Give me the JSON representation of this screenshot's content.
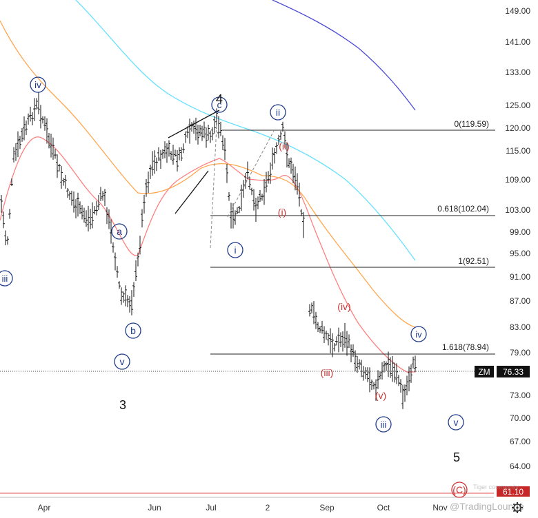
{
  "chart_data": {
    "type": "candlestick",
    "symbol": "ZM",
    "last_price": 76.33,
    "last_price_label": "76.33",
    "x_ticks": [
      "Apr",
      "Jun",
      "Jul",
      "2",
      "Sep",
      "Oct",
      "Nov"
    ],
    "y_ticks": [
      "149.00",
      "141.00",
      "133.00",
      "125.00",
      "120.00",
      "115.00",
      "109.00",
      "103.00",
      "99.00",
      "95.00",
      "91.00",
      "87.00",
      "83.00",
      "79.00",
      "73.00",
      "70.00",
      "67.00",
      "64.00"
    ],
    "fib_levels": [
      {
        "label": "0(119.59)",
        "value": 119.59
      },
      {
        "label": "0.618(102.04)",
        "value": 102.04
      },
      {
        "label": "1(92.51)",
        "value": 92.51
      },
      {
        "label": "1.618(78.94)",
        "value": 78.94
      }
    ],
    "support_line": {
      "label": "61.10",
      "value": 61.1
    },
    "waves": {
      "circled_blue": [
        "iv",
        "a",
        "b",
        "v",
        "iii",
        "c",
        "i",
        "ii",
        "iii",
        "iv",
        "v"
      ],
      "red": [
        "(i)",
        "(ii)",
        "(iii)",
        "(iv)",
        "(v)"
      ],
      "plain": [
        "4",
        "3",
        "5"
      ],
      "circled_red": [
        "(C)"
      ]
    },
    "moving_averages": [
      {
        "color": "#ff7f7f"
      },
      {
        "color": "#ffa64d"
      },
      {
        "color": "#66e0ff"
      },
      {
        "color": "#4b4bd6"
      }
    ]
  },
  "watermark": {
    "text": "@TradingLounge",
    "sub": "Tiger community"
  },
  "colors": {
    "wave_blue": "#1f3b8c",
    "wave_red": "#cc3333",
    "price_tag": "#111111"
  }
}
